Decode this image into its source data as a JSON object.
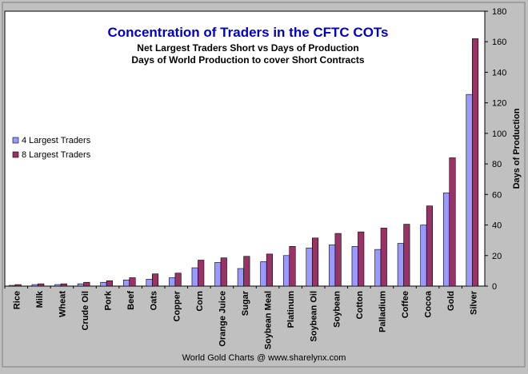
{
  "chart_data": {
    "type": "bar",
    "title": "Concentration of Traders in the CFTC COTs",
    "subtitle_1": "Net Largest Traders Short vs Days of Production",
    "subtitle_2": "Days of World Production to cover Short Contracts",
    "xlabel": "",
    "ylabel": "Days of Production",
    "ylim": [
      0,
      180
    ],
    "yticks": [
      0,
      20,
      40,
      60,
      80,
      100,
      120,
      140,
      160,
      180
    ],
    "y_axis_side": "right",
    "grid": false,
    "legend_position": "left",
    "footer": "World Gold Charts @ www.sharelynx.com",
    "categories": [
      "Rice",
      "Milk",
      "Wheat",
      "Crude Oil",
      "Pork",
      "Beef",
      "Oats",
      "Copper",
      "Corn",
      "Orange Juice",
      "Sugar",
      "Soybean Meal",
      "Platinum",
      "Soybean Oil",
      "Soybean",
      "Cotton",
      "Palladium",
      "Coffee",
      "Cocoa",
      "Gold",
      "Silver"
    ],
    "series": [
      {
        "name": "4 Largest Traders",
        "color": "#9999ff",
        "values": [
          0.5,
          1,
          1,
          1.5,
          2.5,
          4,
          4.5,
          5.5,
          12,
          15.5,
          11.5,
          16,
          20,
          25,
          27,
          26,
          24,
          28,
          40,
          61,
          125.5
        ]
      },
      {
        "name": "8 Largest Traders",
        "color": "#993366",
        "values": [
          1,
          1.5,
          1.5,
          2.5,
          3.5,
          5.5,
          8,
          8.5,
          17,
          18.5,
          19.5,
          21,
          26,
          31.5,
          34.5,
          35.5,
          38,
          40.5,
          52.5,
          84,
          162
        ]
      }
    ]
  }
}
